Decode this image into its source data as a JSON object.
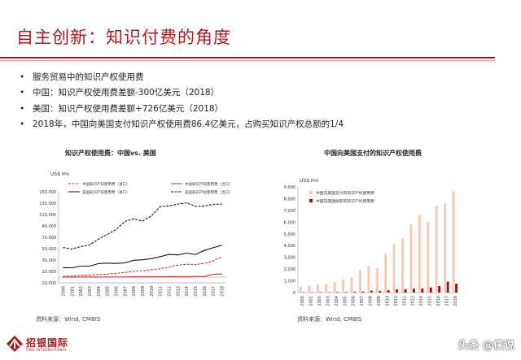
{
  "title": "自主创新：知识付费的角度",
  "bullets": [
    "服务贸易中的知识产权使用费",
    "中国：知识产权使用费差额-300亿美元（2018）",
    "美国：知识产权使用费差额+726亿美元（2018）",
    "2018年，中国向美国支付知识产权使用费86.4亿美元，占购买知识产权总额的1/4"
  ],
  "left_chart_title": "知识产权使用费：中国vs. 美国",
  "right_chart_title": "中国向美国支付的知识产权使用费",
  "left_source": "资料来源：Wind, CMBIS",
  "right_source": "资料来源：Wind, CMBIS",
  "logo_text": "招银国际",
  "logo_sub": "CMB INTERNATIONAL",
  "watermark": "头条 @侠说",
  "colors": {
    "accent": "#b01820",
    "bar_light": "#f5c8b4",
    "bar_dark": "#a01010"
  },
  "chart_data": [
    {
      "type": "line",
      "ylabel": "US$ mn",
      "ylim": [
        -10000,
        150000
      ],
      "yticks": [
        -10000,
        10000,
        30000,
        50000,
        70000,
        90000,
        110000,
        130000,
        150000
      ],
      "ytick_labels": [
        "-10,000",
        "10,000",
        "30,000",
        "50,000",
        "70,000",
        "90,000",
        "110,000",
        "130,000",
        "150,000"
      ],
      "x": [
        "2000",
        "2001",
        "2002",
        "2003",
        "2004",
        "2005",
        "2006",
        "2007",
        "2008",
        "2009",
        "2010",
        "2011",
        "2012",
        "2013",
        "2014",
        "2015",
        "2016",
        "2017",
        "2018"
      ],
      "series": [
        {
          "name": "中国知识产权使用费（进口）",
          "style": "dashed",
          "color": "#d03030",
          "values": [
            1300,
            1900,
            3100,
            3500,
            4500,
            5300,
            6600,
            8200,
            10300,
            11100,
            13000,
            14700,
            17700,
            21000,
            22600,
            22000,
            24000,
            28600,
            35800
          ]
        },
        {
          "name": "中国知识产权使用费（出口）",
          "style": "solid",
          "color": "#d03030",
          "values": [
            80,
            110,
            130,
            110,
            240,
            160,
            200,
            340,
            570,
            430,
            830,
            740,
            1040,
            890,
            680,
            1080,
            1170,
            4800,
            5600
          ]
        },
        {
          "name": "美国知识产权使用费（进口）",
          "style": "solid",
          "color": "#111111",
          "values": [
            16500,
            16400,
            19300,
            19300,
            23700,
            24500,
            24000,
            25000,
            29600,
            30500,
            32500,
            36000,
            39900,
            39000,
            42100,
            39900,
            46800,
            51600,
            56100
          ]
        },
        {
          "name": "美国知识产权使用费（出口）",
          "style": "dashed",
          "color": "#111111",
          "values": [
            51800,
            49600,
            53400,
            56500,
            66500,
            74800,
            83500,
            97800,
            102600,
            98400,
            107500,
            124000,
            125000,
            128500,
            130500,
            124600,
            124800,
            127900,
            128700
          ]
        }
      ]
    },
    {
      "type": "bar",
      "ylabel": "US$ mn",
      "ylim": [
        0,
        9000
      ],
      "yticks": [
        0,
        1000,
        2000,
        3000,
        4000,
        5000,
        6000,
        7000,
        8000,
        9000
      ],
      "ytick_labels": [
        "0",
        "1,000",
        "2,000",
        "3,000",
        "4,000",
        "5,000",
        "6,000",
        "7,000",
        "8,000",
        "9,000"
      ],
      "categories": [
        "2000",
        "2001",
        "2002",
        "2003",
        "2004",
        "2005",
        "2006",
        "2007",
        "2008",
        "2009",
        "2010",
        "2011",
        "2012",
        "2013",
        "2014",
        "2015",
        "2016",
        "2017",
        "2018"
      ],
      "series": [
        {
          "name": "中国向美国支付的知识产权使用费",
          "color": "#f5c8b4",
          "values": [
            500,
            600,
            700,
            750,
            900,
            1100,
            1300,
            1900,
            2300,
            2100,
            3300,
            4100,
            4600,
            5800,
            6600,
            6000,
            7400,
            7600,
            8640
          ]
        },
        {
          "name": "中国向美国收取的知识产权使用费",
          "color": "#a01010",
          "values": [
            20,
            30,
            40,
            30,
            50,
            40,
            60,
            90,
            160,
            140,
            200,
            270,
            290,
            330,
            350,
            420,
            560,
            930,
            750
          ]
        }
      ]
    }
  ]
}
